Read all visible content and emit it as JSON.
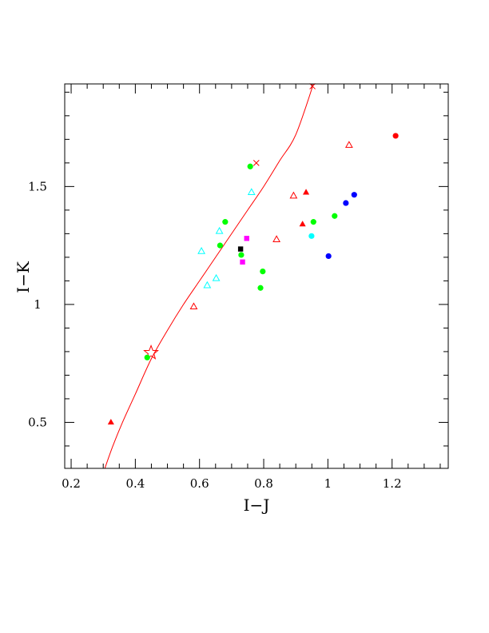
{
  "chart_data": {
    "type": "scatter",
    "title": "",
    "xlabel": "I−J",
    "ylabel": "I−K",
    "xlim": [
      0.18,
      1.375
    ],
    "ylim": [
      0.305,
      1.935
    ],
    "x_ticks": [
      {
        "value": 0.2,
        "label": "0.2"
      },
      {
        "value": 0.4,
        "label": "0.4"
      },
      {
        "value": 0.6,
        "label": "0.6"
      },
      {
        "value": 0.8,
        "label": "0.8"
      },
      {
        "value": 1.0,
        "label": "1"
      },
      {
        "value": 1.2,
        "label": "1.2"
      }
    ],
    "y_ticks": [
      {
        "value": 0.5,
        "label": "0.5"
      },
      {
        "value": 1.0,
        "label": "1"
      },
      {
        "value": 1.5,
        "label": "1.5"
      }
    ],
    "grid": false,
    "legend": "none",
    "curve": {
      "color": "#ff0000",
      "points": [
        [
          0.305,
          0.305
        ],
        [
          0.33,
          0.4
        ],
        [
          0.36,
          0.5
        ],
        [
          0.4,
          0.62
        ],
        [
          0.45,
          0.77
        ],
        [
          0.5,
          0.89
        ],
        [
          0.55,
          1.0
        ],
        [
          0.6,
          1.1
        ],
        [
          0.65,
          1.2
        ],
        [
          0.7,
          1.3
        ],
        [
          0.75,
          1.4
        ],
        [
          0.8,
          1.5
        ],
        [
          0.85,
          1.61
        ],
        [
          0.9,
          1.72
        ],
        [
          0.955,
          1.935
        ]
      ],
      "markers": [
        {
          "x": 0.777,
          "y": 1.6,
          "symbol": "cross"
        },
        {
          "x": 0.952,
          "y": 1.925,
          "symbol": "cross"
        }
      ]
    },
    "series": [
      {
        "marker": "open-star",
        "color": "#ff0000",
        "points": [
          [
            0.449,
            0.795
          ]
        ]
      },
      {
        "marker": "filled-triangle",
        "color": "#ff0000",
        "points": [
          [
            0.324,
            0.5
          ],
          [
            0.932,
            1.475
          ],
          [
            0.921,
            1.34
          ]
        ]
      },
      {
        "marker": "open-triangle",
        "color": "#ff0000",
        "points": [
          [
            0.582,
            0.99
          ],
          [
            0.84,
            1.275
          ],
          [
            0.893,
            1.46
          ],
          [
            1.066,
            1.675
          ]
        ]
      },
      {
        "marker": "open-triangle",
        "color": "#00ffff",
        "points": [
          [
            0.606,
            1.225
          ],
          [
            0.624,
            1.08
          ],
          [
            0.652,
            1.11
          ],
          [
            0.662,
            1.31
          ],
          [
            0.762,
            1.475
          ]
        ]
      },
      {
        "marker": "filled-circle",
        "color": "#00ff00",
        "points": [
          [
            0.437,
            0.775
          ],
          [
            0.664,
            1.25
          ],
          [
            0.68,
            1.35
          ],
          [
            0.73,
            1.21
          ],
          [
            0.758,
            1.585
          ],
          [
            0.79,
            1.07
          ],
          [
            0.797,
            1.14
          ],
          [
            0.955,
            1.35
          ],
          [
            1.021,
            1.375
          ]
        ]
      },
      {
        "marker": "filled-circle",
        "color": "#00ffff",
        "points": [
          [
            0.949,
            1.29
          ]
        ]
      },
      {
        "marker": "filled-circle",
        "color": "#0000ff",
        "points": [
          [
            1.002,
            1.205
          ],
          [
            1.056,
            1.43
          ],
          [
            1.082,
            1.465
          ]
        ]
      },
      {
        "marker": "filled-circle",
        "color": "#ff0000",
        "points": [
          [
            1.211,
            1.715
          ]
        ]
      },
      {
        "marker": "filled-square",
        "color": "#000000",
        "points": [
          [
            0.728,
            1.235
          ]
        ]
      },
      {
        "marker": "filled-square",
        "color": "#ff00ff",
        "points": [
          [
            0.747,
            1.28
          ],
          [
            0.734,
            1.18
          ]
        ]
      }
    ]
  }
}
